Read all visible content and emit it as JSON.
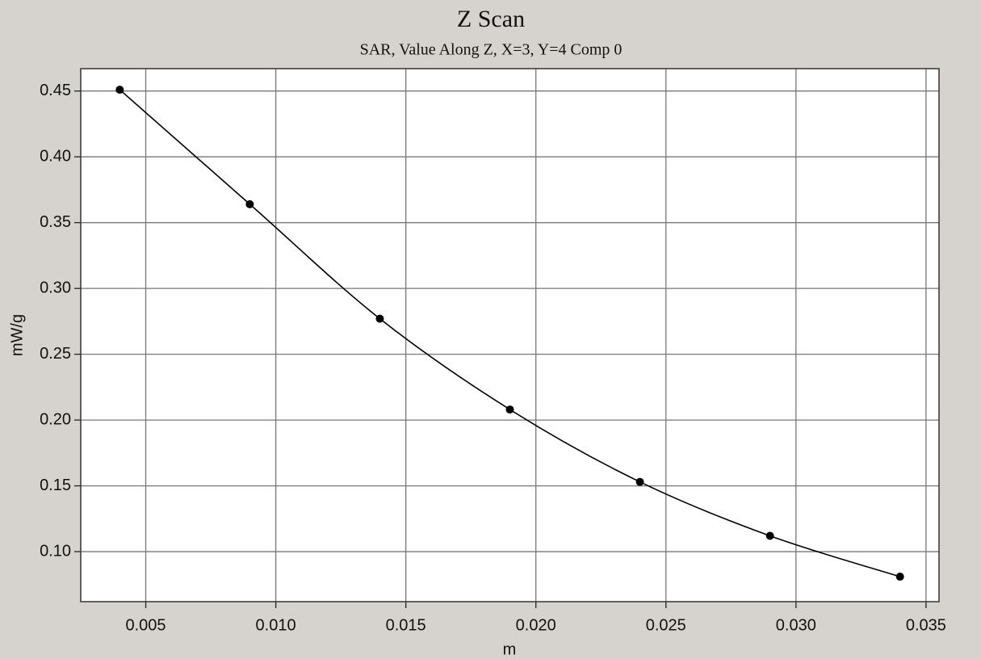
{
  "chart_data": {
    "type": "line",
    "title": "Z Scan",
    "subtitle": "SAR, Value Along Z, X=3, Y=4 Comp 0",
    "x_label": "m",
    "y_label": "mW/g",
    "x": [
      0.004,
      0.009,
      0.014,
      0.019,
      0.024,
      0.029,
      0.034
    ],
    "series": [
      {
        "color": "#000000",
        "values": [
          0.451,
          0.364,
          0.277,
          0.208,
          0.153,
          0.112,
          0.081
        ]
      }
    ],
    "xlim": [
      0.0025,
      0.0355
    ],
    "xticks": [
      0.005,
      {
        "value": 0.01,
        "label": "0.010"
      },
      0.015,
      {
        "value": 0.02,
        "label": "0.020"
      },
      0.025,
      {
        "value": 0.03,
        "label": "0.030"
      },
      0.035
    ],
    "ylim": [
      0.062,
      0.467
    ],
    "yticks": [
      {
        "value": 0.1,
        "label": "0.10"
      },
      0.15,
      {
        "value": 0.2,
        "label": "0.20"
      },
      0.25,
      {
        "value": 0.3,
        "label": "0.30"
      },
      0.35,
      {
        "value": 0.4,
        "label": "0.40"
      },
      0.45
    ],
    "grid": true
  }
}
